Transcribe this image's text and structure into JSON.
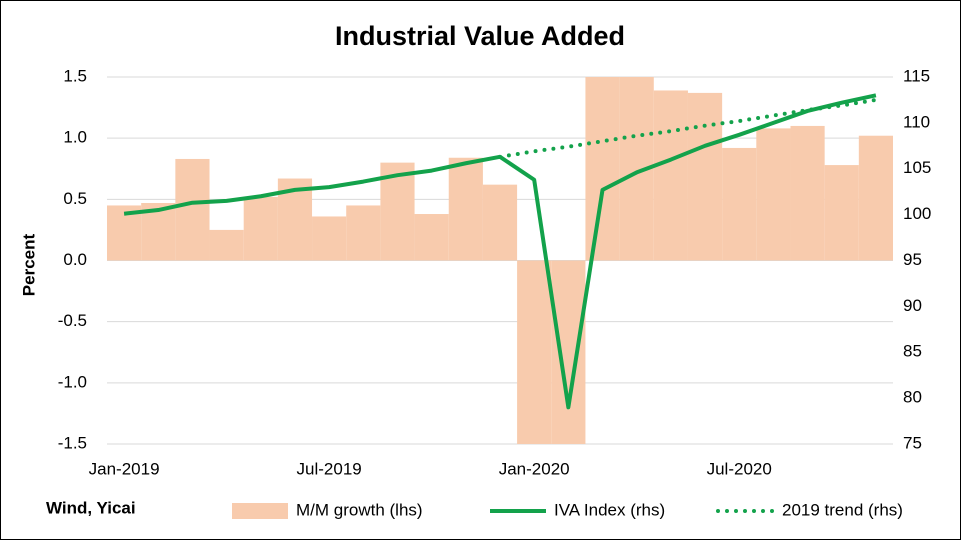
{
  "chart_data": {
    "type": "bar_line",
    "title": "Industrial Value Added",
    "y_label": "Percent",
    "source": "Wind, Yicai",
    "categories": [
      "Jan-2019",
      null,
      null,
      null,
      null,
      null,
      "Jul-2019",
      null,
      null,
      null,
      null,
      null,
      "Jan-2020",
      null,
      null,
      null,
      null,
      null,
      "Jul-2020",
      null,
      null,
      null,
      null
    ],
    "series": [
      {
        "name": "M/M growth (lhs)",
        "type": "bar",
        "color": "#f8cbad",
        "axis": "y",
        "values": [
          0.45,
          0.47,
          0.83,
          0.25,
          0.52,
          0.67,
          0.36,
          0.45,
          0.8,
          0.38,
          0.84,
          0.62,
          -1.5,
          -1.5,
          1.5,
          1.5,
          1.39,
          1.37,
          0.92,
          1.08,
          1.1,
          0.78,
          1.02
        ]
      },
      {
        "name": "IVA Index (rhs)",
        "type": "line",
        "color": "#13a24b",
        "axis": "y2",
        "values": [
          100.1,
          100.5,
          101.3,
          101.5,
          102.0,
          102.7,
          103.0,
          103.6,
          104.3,
          104.8,
          105.6,
          106.3,
          103.8,
          79.0,
          102.7,
          104.6,
          106.0,
          107.5,
          108.7,
          110.0,
          111.3,
          112.2,
          113.0
        ]
      },
      {
        "name": "2019 trend (rhs)",
        "type": "dotted",
        "color": "#13a24b",
        "axis": "y2",
        "values": [
          null,
          null,
          null,
          null,
          null,
          null,
          null,
          null,
          null,
          null,
          null,
          106.3,
          106.9,
          107.4,
          108.0,
          108.6,
          109.1,
          109.7,
          110.2,
          110.8,
          111.4,
          111.9,
          112.5
        ]
      }
    ],
    "ylim": [
      -1.5,
      1.5
    ],
    "yticks": [
      -1.5,
      {
        "value": -1.0,
        "label": "-1.0"
      },
      -0.5,
      {
        "value": 0.0,
        "label": "0.0"
      },
      0.5,
      {
        "value": 1.0,
        "label": "1.0"
      },
      1.5
    ],
    "y2lim": [
      75,
      115
    ],
    "y2ticks": [
      75,
      80,
      85,
      90,
      95,
      100,
      105,
      110,
      115
    ],
    "grid": true
  }
}
